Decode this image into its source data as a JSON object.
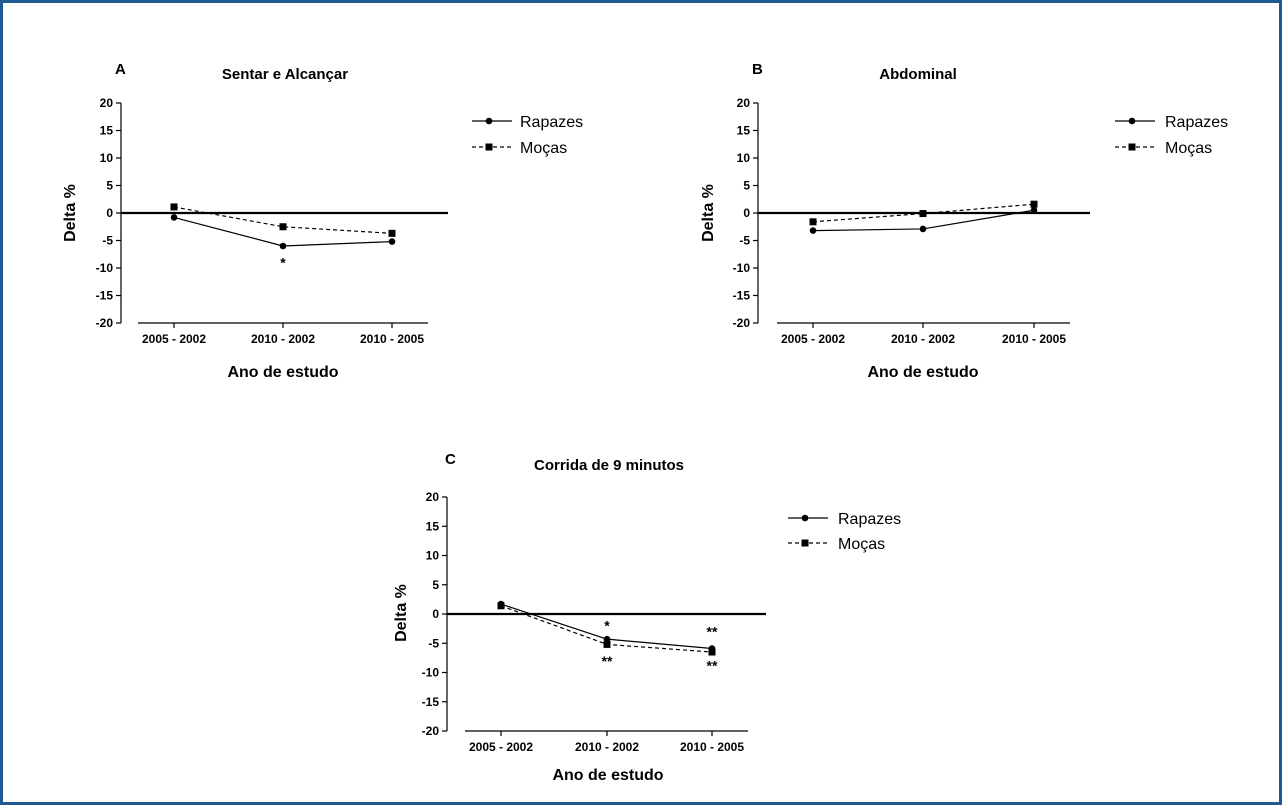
{
  "figure": {
    "border_color": "#1f5a91"
  },
  "chart_data": [
    {
      "type": "line",
      "panel": "A",
      "title": "Sentar e Alcançar",
      "xlabel": "Ano de estudo",
      "ylabel": "Delta %",
      "ylim": [
        -20,
        20
      ],
      "yticks": [
        20,
        15,
        10,
        5,
        0,
        -5,
        -10,
        -15,
        -20
      ],
      "categories": [
        "2005 - 2002",
        "2010 - 2002",
        "2010 - 2005"
      ],
      "series": [
        {
          "name": "Rapazes",
          "marker": "circle",
          "line": "solid",
          "values": [
            -0.8,
            -6.0,
            -5.2
          ]
        },
        {
          "name": "Moças",
          "marker": "square",
          "line": "dashed",
          "values": [
            1.1,
            -2.5,
            -3.7
          ]
        }
      ],
      "annotations": [
        {
          "category_index": 1,
          "value": -9.0,
          "text": "*"
        }
      ],
      "zero_line": true,
      "legend_position": "right"
    },
    {
      "type": "line",
      "panel": "B",
      "title": "Abdominal",
      "xlabel": "Ano de estudo",
      "ylabel": "Delta %",
      "ylim": [
        -20,
        20
      ],
      "yticks": [
        20,
        15,
        10,
        5,
        0,
        -5,
        -10,
        -15,
        -20
      ],
      "categories": [
        "2005 - 2002",
        "2010 - 2002",
        "2010 - 2005"
      ],
      "series": [
        {
          "name": "Rapazes",
          "marker": "circle",
          "line": "solid",
          "values": [
            -3.2,
            -2.9,
            0.5
          ]
        },
        {
          "name": "Moças",
          "marker": "square",
          "line": "dashed",
          "values": [
            -1.6,
            -0.1,
            1.6
          ]
        }
      ],
      "annotations": [],
      "zero_line": true,
      "legend_position": "right"
    },
    {
      "type": "line",
      "panel": "C",
      "title": "Corrida de 9 minutos",
      "xlabel": "Ano de estudo",
      "ylabel": "Delta %",
      "ylim": [
        -20,
        20
      ],
      "yticks": [
        20,
        15,
        10,
        5,
        0,
        -5,
        -10,
        -15,
        -20
      ],
      "categories": [
        "2005 - 2002",
        "2010 - 2002",
        "2010 - 2005"
      ],
      "series": [
        {
          "name": "Rapazes",
          "marker": "circle",
          "line": "solid",
          "values": [
            1.7,
            -4.3,
            -5.9
          ]
        },
        {
          "name": "Moças",
          "marker": "square",
          "line": "dashed",
          "values": [
            1.4,
            -5.2,
            -6.5
          ]
        }
      ],
      "annotations": [
        {
          "category_index": 1,
          "value": -2.0,
          "text": "*"
        },
        {
          "category_index": 1,
          "value": -8.0,
          "text": "**"
        },
        {
          "category_index": 2,
          "value": -3.0,
          "text": "**"
        },
        {
          "category_index": 2,
          "value": -8.8,
          "text": "**"
        }
      ],
      "zero_line": true,
      "legend_position": "right"
    }
  ]
}
